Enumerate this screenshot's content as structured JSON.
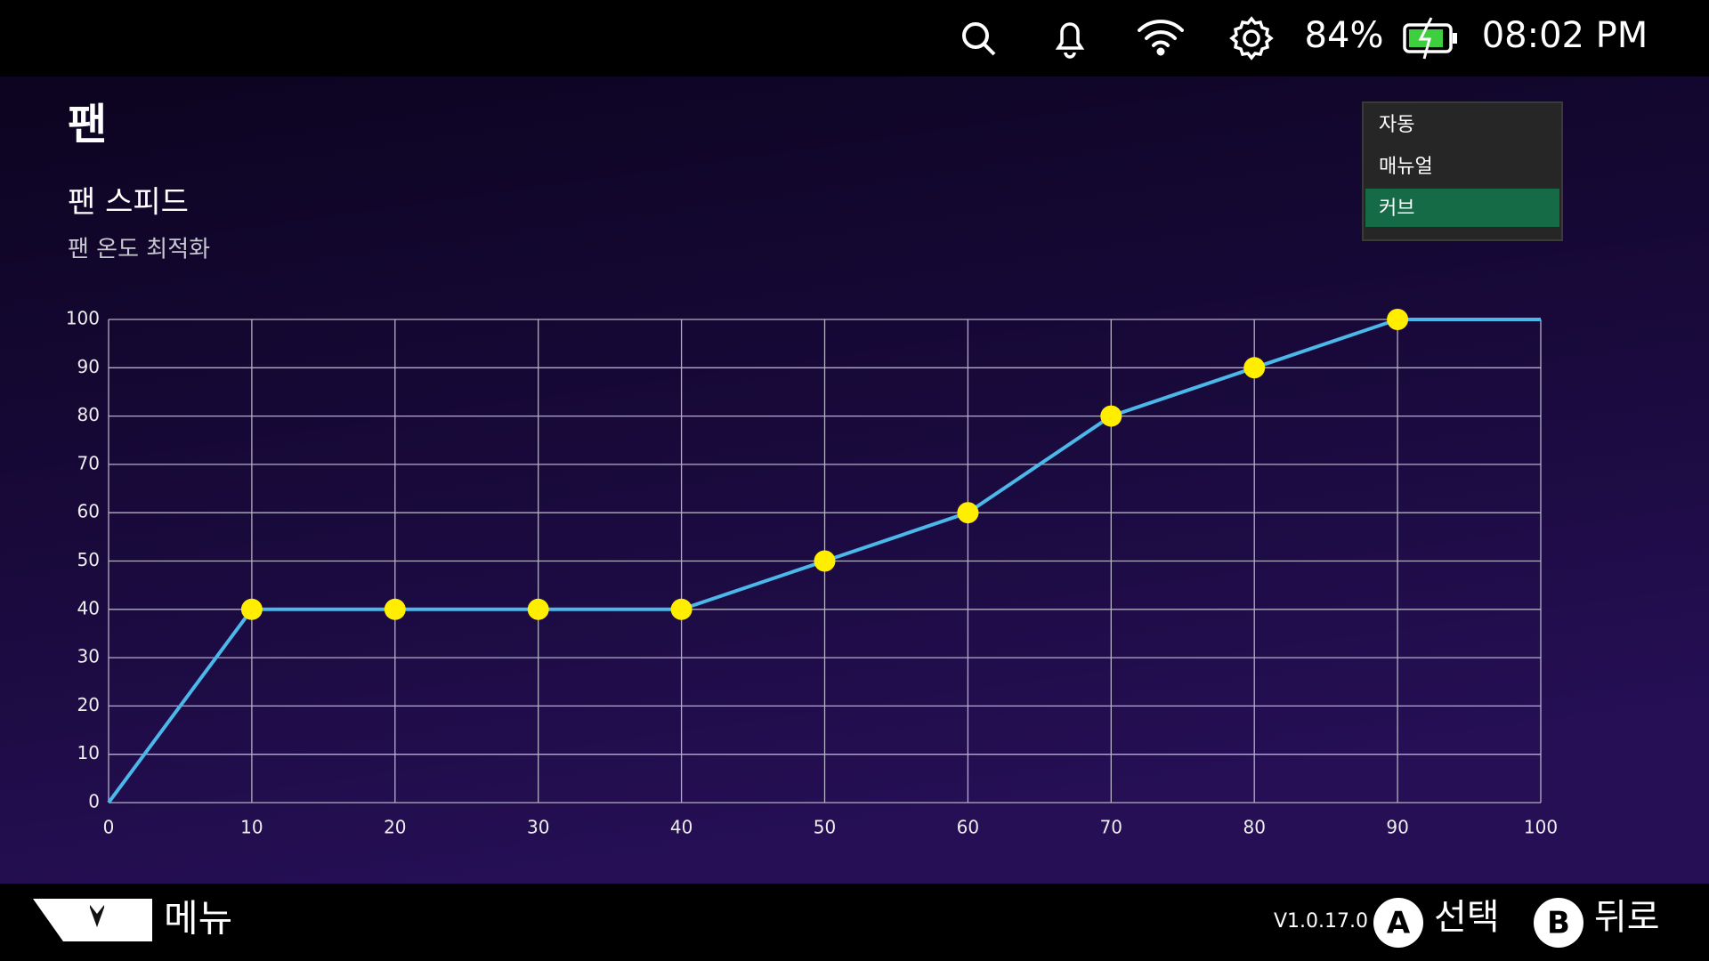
{
  "status_bar": {
    "battery": "84%",
    "time": "08:02 PM"
  },
  "header": {
    "title": "팬",
    "subtitle": "팬 스피드",
    "description": "팬 온도 최적화"
  },
  "dropdown": {
    "options": [
      "자동",
      "매뉴얼",
      "커브"
    ],
    "selected": 2
  },
  "chart_data": {
    "type": "line",
    "x": [
      0,
      10,
      20,
      30,
      40,
      50,
      60,
      70,
      80,
      90,
      100
    ],
    "values": [
      0,
      40,
      40,
      40,
      40,
      50,
      60,
      80,
      90,
      100,
      100
    ],
    "color": "#4cb8ea",
    "marker_color": "#ffee00",
    "xlim": [
      0,
      100
    ],
    "ylim": [
      0,
      100
    ],
    "xticks": [
      0,
      10,
      20,
      30,
      40,
      50,
      60,
      70,
      80,
      90,
      100
    ],
    "yticks": [
      0,
      10,
      20,
      30,
      40,
      50,
      60,
      70,
      80,
      90,
      100
    ],
    "grid": true
  },
  "footer": {
    "menu": "메뉴",
    "version": "V1.0.17.0",
    "buttons": [
      {
        "key": "A",
        "label": "선택"
      },
      {
        "key": "B",
        "label": "뒤로"
      }
    ]
  }
}
